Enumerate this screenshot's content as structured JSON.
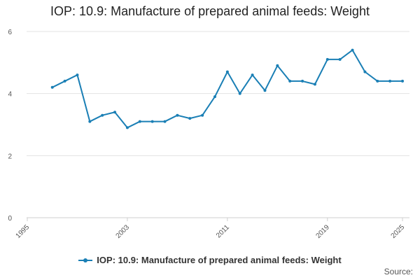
{
  "chart_data": {
    "type": "line",
    "title": "IOP: 10.9: Manufacture of prepared animal feeds: Weight",
    "xlabel": "",
    "ylabel": "",
    "xlim": [
      1995,
      2025
    ],
    "ylim": [
      0,
      6
    ],
    "x_ticks": [
      "1995",
      "2003",
      "2011",
      "2019",
      "2025"
    ],
    "y_ticks": [
      "0",
      "2",
      "4",
      "6"
    ],
    "grid": true,
    "legend_position": "bottom",
    "series": [
      {
        "name": "IOP: 10.9: Manufacture of prepared animal feeds: Weight",
        "color": "#1a7fb5",
        "x": [
          1997,
          1998,
          1999,
          2000,
          2001,
          2002,
          2003,
          2004,
          2005,
          2006,
          2007,
          2008,
          2009,
          2010,
          2011,
          2012,
          2013,
          2014,
          2015,
          2016,
          2017,
          2018,
          2019,
          2020,
          2021,
          2022,
          2023,
          2024,
          2025
        ],
        "values": [
          4.2,
          4.4,
          4.6,
          3.1,
          3.3,
          3.4,
          2.9,
          3.1,
          3.1,
          3.1,
          3.3,
          3.2,
          3.3,
          3.9,
          4.7,
          4.0,
          4.6,
          4.1,
          4.9,
          4.4,
          4.4,
          4.3,
          5.1,
          5.1,
          5.4,
          4.7,
          4.4,
          4.4,
          4.4
        ]
      }
    ],
    "credit": "Source:"
  }
}
